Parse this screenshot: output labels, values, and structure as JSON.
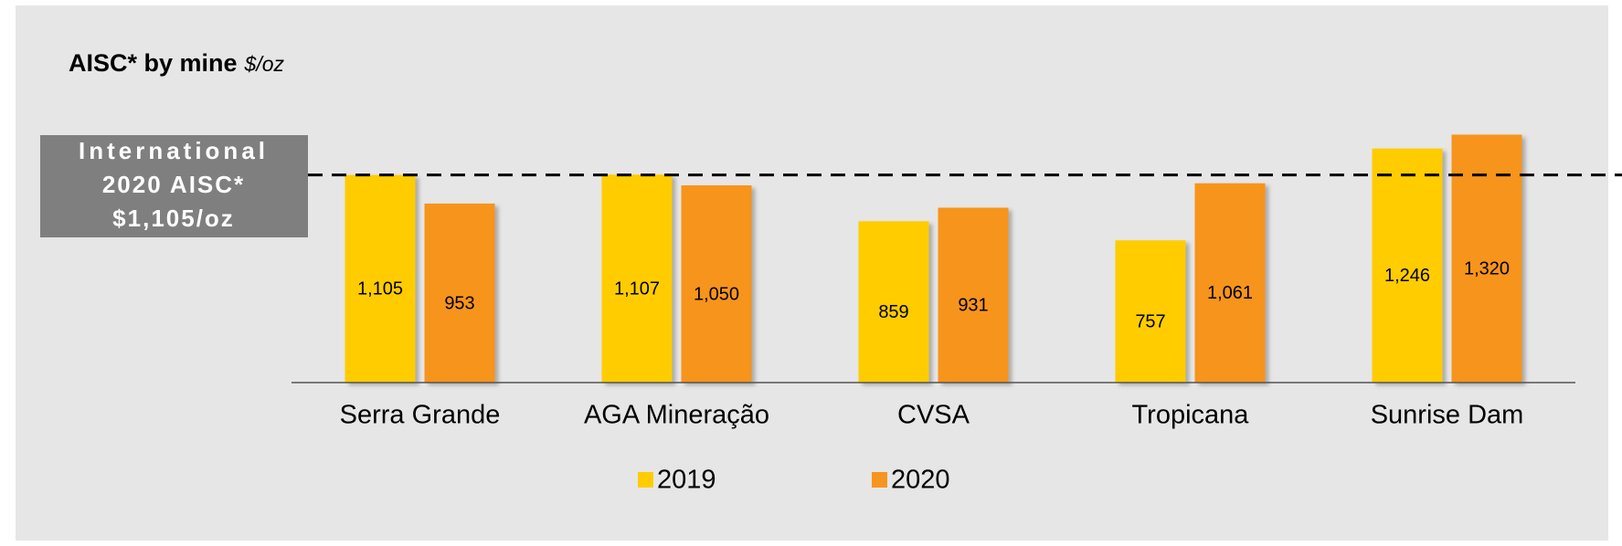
{
  "chart_data": {
    "type": "bar",
    "title": "AISC* by mine",
    "subtitle": "$/oz",
    "categories": [
      "Serra Grande",
      "AGA Mineração",
      "CVSA",
      "Tropicana",
      "Sunrise Dam"
    ],
    "series": [
      {
        "name": "2019",
        "color": "#ffcc00",
        "values": [
          1105,
          1107,
          859,
          757,
          1246
        ],
        "value_labels": [
          "1,105",
          "1,107",
          "859",
          "757",
          "1,246"
        ]
      },
      {
        "name": "2020",
        "color": "#f7941d",
        "values": [
          953,
          1050,
          931,
          1061,
          1320
        ],
        "value_labels": [
          "953",
          "1,050",
          "931",
          "1,061",
          "1,320"
        ]
      }
    ],
    "ylim": [
      0,
      1400
    ],
    "reference_line": {
      "value": 1105,
      "label": [
        "International",
        "2020 AISC*",
        "$1,105/oz"
      ]
    },
    "legend": "bottom"
  }
}
